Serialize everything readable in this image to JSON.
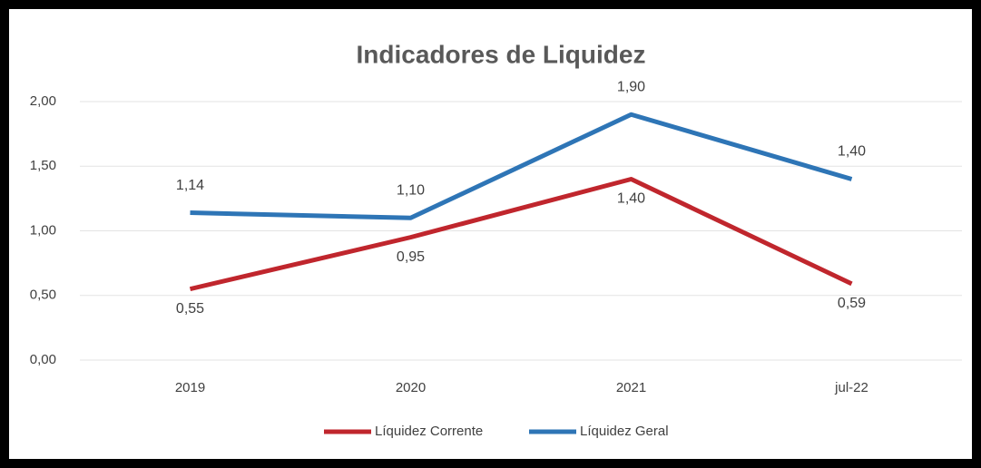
{
  "chart_data": {
    "type": "line",
    "title": "Indicadores de Liquidez",
    "categories": [
      "2019",
      "2020",
      "2021",
      "jul-22"
    ],
    "series": [
      {
        "name": "Líquidez Corrente",
        "color": "#c0262d",
        "values": [
          0.55,
          0.95,
          1.4,
          0.59
        ],
        "value_labels": [
          "0,55",
          "0,95",
          "1,40",
          "0,59"
        ]
      },
      {
        "name": "Líquidez Geral",
        "color": "#2e75b6",
        "values": [
          1.14,
          1.1,
          1.9,
          1.4
        ],
        "value_labels": [
          "1,14",
          "1,10",
          "1,90",
          "1,40"
        ]
      }
    ],
    "ylim": [
      0,
      2
    ],
    "yticks": [
      {
        "value": 0,
        "label": "0,00"
      },
      {
        "value": 0.5,
        "label": "0,50"
      },
      {
        "value": 1,
        "label": "1,00"
      },
      {
        "value": 1.5,
        "label": "1,50"
      },
      {
        "value": 2,
        "label": "2,00"
      }
    ],
    "grid": true,
    "legend": "bottom"
  }
}
